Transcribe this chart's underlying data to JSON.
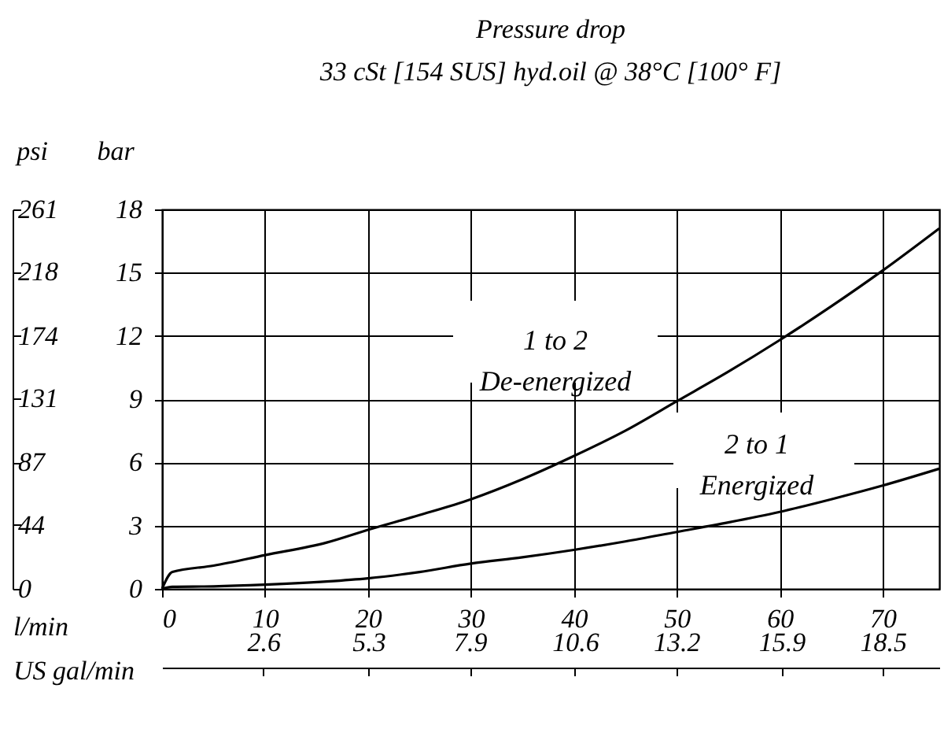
{
  "chart_data": {
    "type": "line",
    "title": "Pressure    drop",
    "subtitle": "33 cSt [154 SUS] hyd.oil @ 38°C [100° F]",
    "xlabel": "l/min",
    "ylabel": "bar",
    "y2label": "psi",
    "x2label": "US gal/min",
    "x": [
      0,
      1,
      5,
      10,
      16,
      20,
      25,
      30,
      35,
      40,
      45,
      50,
      55,
      60,
      65,
      70,
      75.5
    ],
    "series": [
      {
        "name": "1 to 2\nDe-energized",
        "color": "#000000",
        "values": [
          0,
          0.8,
          1.1,
          1.6,
          2.2,
          2.8,
          3.5,
          4.25,
          5.2,
          6.3,
          7.5,
          8.9,
          10.3,
          11.8,
          13.4,
          15.1,
          17.1
        ]
      },
      {
        "name": "2 to 1\nEnergized",
        "color": "#000000",
        "values": [
          0,
          0.1,
          0.12,
          0.2,
          0.35,
          0.5,
          0.8,
          1.2,
          1.5,
          1.85,
          2.25,
          2.7,
          3.15,
          3.65,
          4.25,
          4.9,
          5.7
        ]
      }
    ],
    "xlim": [
      0,
      75.5
    ],
    "xticks": [
      0,
      10,
      20,
      30,
      40,
      50,
      60,
      70
    ],
    "ylim": [
      0,
      18
    ],
    "yticks": [
      0,
      3,
      6,
      9,
      12,
      15,
      18
    ],
    "y2lim": [
      0,
      261
    ],
    "y2ticks": [
      0,
      44,
      87,
      131,
      174,
      218,
      261
    ],
    "x2lim": [
      0,
      19.95
    ],
    "x2ticks": [
      2.6,
      5.3,
      7.9,
      10.6,
      13.2,
      15.9,
      18.5
    ],
    "grid": true,
    "marker": "none",
    "line_style": "solid"
  }
}
